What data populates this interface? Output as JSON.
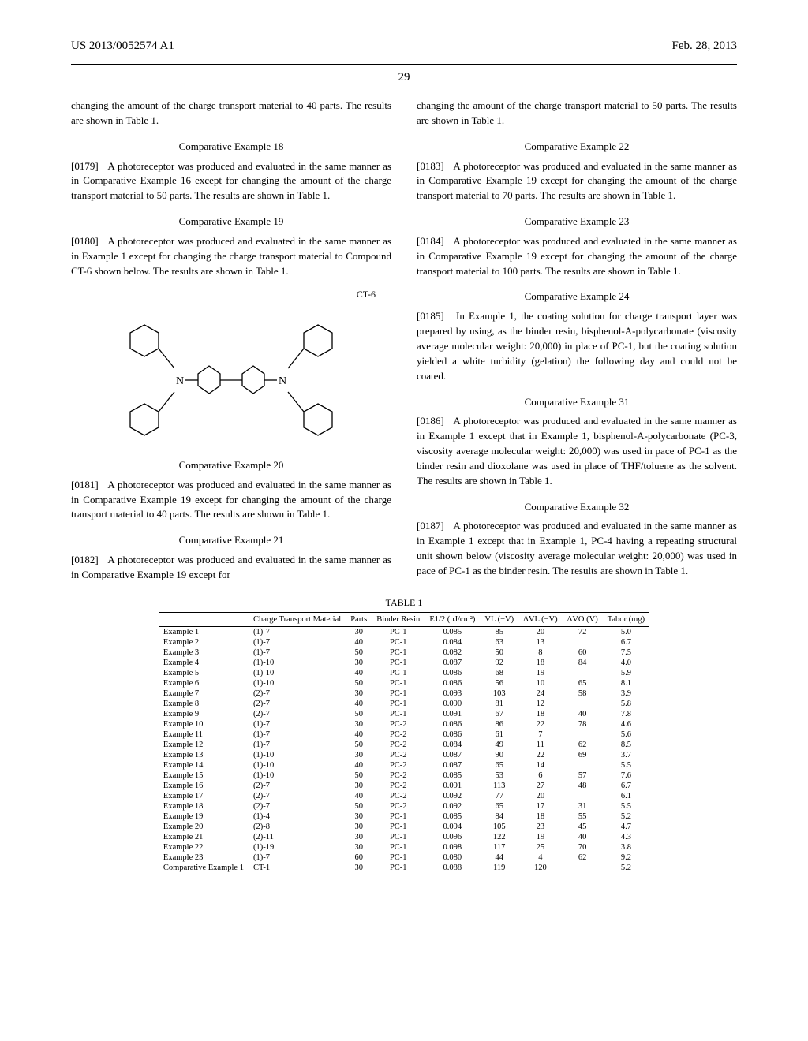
{
  "header": {
    "left": "US 2013/0052574 A1",
    "right": "Feb. 28, 2013"
  },
  "page_number": "29",
  "left_column": {
    "intro": "changing the amount of the charge transport material to 40 parts. The results are shown in Table 1.",
    "sections": [
      {
        "title": "Comparative Example 18",
        "num": "[0179]",
        "text": "A photoreceptor was produced and evaluated in the same manner as in Comparative Example 16 except for changing the amount of the charge transport material to 50 parts. The results are shown in Table 1."
      },
      {
        "title": "Comparative Example 19",
        "num": "[0180]",
        "text": "A photoreceptor was produced and evaluated in the same manner as in Example 1 except for changing the charge transport material to Compound CT-6 shown below. The results are shown in Table 1."
      }
    ],
    "ct_label": "CT-6",
    "after_structure": [
      {
        "title": "Comparative Example 20",
        "num": "[0181]",
        "text": "A photoreceptor was produced and evaluated in the same manner as in Comparative Example 19 except for changing the amount of the charge transport material to 40 parts. The results are shown in Table 1."
      },
      {
        "title": "Comparative Example 21",
        "num": "[0182]",
        "text": "A photoreceptor was produced and evaluated in the same manner as in Comparative Example 19 except for"
      }
    ]
  },
  "right_column": {
    "intro": "changing the amount of the charge transport material to 50 parts. The results are shown in Table 1.",
    "sections": [
      {
        "title": "Comparative Example 22",
        "num": "[0183]",
        "text": "A photoreceptor was produced and evaluated in the same manner as in Comparative Example 19 except for changing the amount of the charge transport material to 70 parts. The results are shown in Table 1."
      },
      {
        "title": "Comparative Example 23",
        "num": "[0184]",
        "text": "A photoreceptor was produced and evaluated in the same manner as in Comparative Example 19 except for changing the amount of the charge transport material to 100 parts. The results are shown in Table 1."
      },
      {
        "title": "Comparative Example 24",
        "num": "[0185]",
        "text": "In Example 1, the coating solution for charge transport layer was prepared by using, as the binder resin, bisphenol-A-polycarbonate (viscosity average molecular weight: 20,000) in place of PC-1, but the coating solution yielded a white turbidity (gelation) the following day and could not be coated."
      },
      {
        "title": "Comparative Example 31",
        "num": "[0186]",
        "text": "A photoreceptor was produced and evaluated in the same manner as in Example 1 except that in Example 1, bisphenol-A-polycarbonate (PC-3, viscosity average molecular weight: 20,000) was used in pace of PC-1 as the binder resin and dioxolane was used in place of THF/toluene as the solvent. The results are shown in Table 1."
      },
      {
        "title": "Comparative Example 32",
        "num": "[0187]",
        "text": "A photoreceptor was produced and evaluated in the same manner as in Example 1 except that in Example 1, PC-4 having a repeating structural unit shown below (viscosity average molecular weight: 20,000) was used in pace of PC-1 as the binder resin. The results are shown in Table 1."
      }
    ]
  },
  "table": {
    "title": "TABLE 1",
    "columns": [
      "",
      "Charge Transport Material",
      "Parts",
      "Binder Resin",
      "E1/2 (μJ/cm²)",
      "VL (−V)",
      "ΔVL (−V)",
      "ΔVO (V)",
      "Tabor (mg)"
    ],
    "rows": [
      [
        "Example 1",
        "(1)-7",
        "30",
        "PC-1",
        "0.085",
        "85",
        "20",
        "72",
        "5.0"
      ],
      [
        "Example 2",
        "(1)-7",
        "40",
        "PC-1",
        "0.084",
        "63",
        "13",
        "",
        "6.7"
      ],
      [
        "Example 3",
        "(1)-7",
        "50",
        "PC-1",
        "0.082",
        "50",
        "8",
        "60",
        "7.5"
      ],
      [
        "Example 4",
        "(1)-10",
        "30",
        "PC-1",
        "0.087",
        "92",
        "18",
        "84",
        "4.0"
      ],
      [
        "Example 5",
        "(1)-10",
        "40",
        "PC-1",
        "0.086",
        "68",
        "19",
        "",
        "5.9"
      ],
      [
        "Example 6",
        "(1)-10",
        "50",
        "PC-1",
        "0.086",
        "56",
        "10",
        "65",
        "8.1"
      ],
      [
        "Example 7",
        "(2)-7",
        "30",
        "PC-1",
        "0.093",
        "103",
        "24",
        "58",
        "3.9"
      ],
      [
        "Example 8",
        "(2)-7",
        "40",
        "PC-1",
        "0.090",
        "81",
        "12",
        "",
        "5.8"
      ],
      [
        "Example 9",
        "(2)-7",
        "50",
        "PC-1",
        "0.091",
        "67",
        "18",
        "40",
        "7.8"
      ],
      [
        "Example 10",
        "(1)-7",
        "30",
        "PC-2",
        "0.086",
        "86",
        "22",
        "78",
        "4.6"
      ],
      [
        "Example 11",
        "(1)-7",
        "40",
        "PC-2",
        "0.086",
        "61",
        "7",
        "",
        "5.6"
      ],
      [
        "Example 12",
        "(1)-7",
        "50",
        "PC-2",
        "0.084",
        "49",
        "11",
        "62",
        "8.5"
      ],
      [
        "Example 13",
        "(1)-10",
        "30",
        "PC-2",
        "0.087",
        "90",
        "22",
        "69",
        "3.7"
      ],
      [
        "Example 14",
        "(1)-10",
        "40",
        "PC-2",
        "0.087",
        "65",
        "14",
        "",
        "5.5"
      ],
      [
        "Example 15",
        "(1)-10",
        "50",
        "PC-2",
        "0.085",
        "53",
        "6",
        "57",
        "7.6"
      ],
      [
        "Example 16",
        "(2)-7",
        "30",
        "PC-2",
        "0.091",
        "113",
        "27",
        "48",
        "6.7"
      ],
      [
        "Example 17",
        "(2)-7",
        "40",
        "PC-2",
        "0.092",
        "77",
        "20",
        "",
        "6.1"
      ],
      [
        "Example 18",
        "(2)-7",
        "50",
        "PC-2",
        "0.092",
        "65",
        "17",
        "31",
        "5.5"
      ],
      [
        "Example 19",
        "(1)-4",
        "30",
        "PC-1",
        "0.085",
        "84",
        "18",
        "55",
        "5.2"
      ],
      [
        "Example 20",
        "(2)-8",
        "30",
        "PC-1",
        "0.094",
        "105",
        "23",
        "45",
        "4.7"
      ],
      [
        "Example 21",
        "(2)-11",
        "30",
        "PC-1",
        "0.096",
        "122",
        "19",
        "40",
        "4.3"
      ],
      [
        "Example 22",
        "(1)-19",
        "30",
        "PC-1",
        "0.098",
        "117",
        "25",
        "70",
        "3.8"
      ],
      [
        "Example 23",
        "(1)-7",
        "60",
        "PC-1",
        "0.080",
        "44",
        "4",
        "62",
        "9.2"
      ],
      [
        "Comparative Example 1",
        "CT-1",
        "30",
        "PC-1",
        "0.088",
        "119",
        "120",
        "",
        "5.2"
      ]
    ]
  }
}
